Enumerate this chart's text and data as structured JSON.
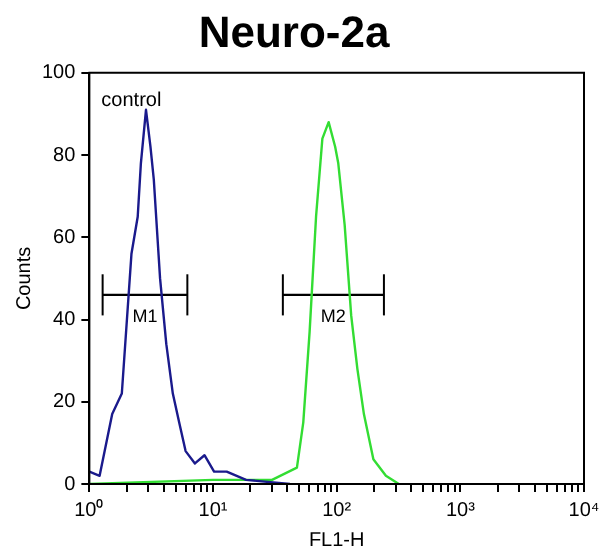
{
  "chart_data": {
    "type": "line",
    "title": "Neuro-2a",
    "xlabel": "FL1-H",
    "ylabel": "Counts",
    "log": "x",
    "grid": false,
    "legend": false,
    "marker": "none",
    "xlim": [
      1,
      10000
    ],
    "xticks": [
      {
        "value": 1,
        "label": "10⁰"
      },
      {
        "value": 2,
        "label": null
      },
      {
        "value": 3,
        "label": null
      },
      {
        "value": 4,
        "label": null
      },
      {
        "value": 5,
        "label": null
      },
      {
        "value": 6,
        "label": null
      },
      {
        "value": 7,
        "label": null
      },
      {
        "value": 8,
        "label": null
      },
      {
        "value": 9,
        "label": null
      },
      {
        "value": 10,
        "label": "10¹"
      },
      {
        "value": 20,
        "label": null
      },
      {
        "value": 30,
        "label": null
      },
      {
        "value": 40,
        "label": null
      },
      {
        "value": 50,
        "label": null
      },
      {
        "value": 60,
        "label": null
      },
      {
        "value": 70,
        "label": null
      },
      {
        "value": 80,
        "label": null
      },
      {
        "value": 90,
        "label": null
      },
      {
        "value": 100,
        "label": "10²"
      },
      {
        "value": 200,
        "label": null
      },
      {
        "value": 300,
        "label": null
      },
      {
        "value": 400,
        "label": null
      },
      {
        "value": 500,
        "label": null
      },
      {
        "value": 600,
        "label": null
      },
      {
        "value": 700,
        "label": null
      },
      {
        "value": 800,
        "label": null
      },
      {
        "value": 900,
        "label": null
      },
      {
        "value": 1000,
        "label": "10³"
      },
      {
        "value": 2000,
        "label": null
      },
      {
        "value": 3000,
        "label": null
      },
      {
        "value": 4000,
        "label": null
      },
      {
        "value": 5000,
        "label": null
      },
      {
        "value": 6000,
        "label": null
      },
      {
        "value": 7000,
        "label": null
      },
      {
        "value": 8000,
        "label": null
      },
      {
        "value": 9000,
        "label": null
      },
      {
        "value": 10000,
        "label": "10⁴"
      }
    ],
    "ylim": [
      0,
      100
    ],
    "yticks": [
      0,
      20,
      40,
      60,
      80,
      100
    ],
    "series": [
      {
        "color": "#1a1a8c",
        "x": [
          1,
          1.21,
          1.53,
          1.83,
          2.19,
          2.46,
          2.61,
          2.87,
          3.12,
          3.32,
          3.73,
          4.19,
          4.73,
          5.32,
          6.0,
          7.14,
          8.53,
          10.2,
          12.9,
          18.5,
          41.9
        ],
        "values": [
          3,
          2,
          17,
          22,
          56,
          65,
          78,
          91,
          82,
          74,
          50,
          34,
          22,
          15,
          8,
          5,
          7,
          3,
          3,
          1,
          0
        ]
      },
      {
        "color": "#33dd33",
        "x": [
          1,
          10,
          30,
          47.7,
          53.7,
          60.4,
          68.1,
          76.6,
          86.1,
          97.2,
          103,
          116,
          131,
          147,
          166,
          198,
          250,
          318
        ],
        "values": [
          0,
          1,
          1,
          4,
          15,
          37,
          65,
          84,
          88,
          82,
          78,
          63,
          41,
          28,
          17,
          6,
          2,
          0
        ]
      },
      {
        "color": "#000000",
        "x": [
          1.28,
          6.2
        ],
        "values": [
          46,
          46
        ],
        "errors": [
          [
            41,
            51
          ],
          [
            41,
            51
          ]
        ]
      },
      {
        "color": "#000000",
        "x": [
          36.7,
          241
        ],
        "values": [
          46,
          46
        ],
        "errors": [
          [
            41,
            51
          ],
          [
            41,
            51
          ]
        ]
      }
    ],
    "annotations": [
      "control",
      {
        "text": "M1",
        "x": 2.82,
        "y": 46
      },
      {
        "text": "M2",
        "x": 94,
        "y": 46
      }
    ]
  }
}
